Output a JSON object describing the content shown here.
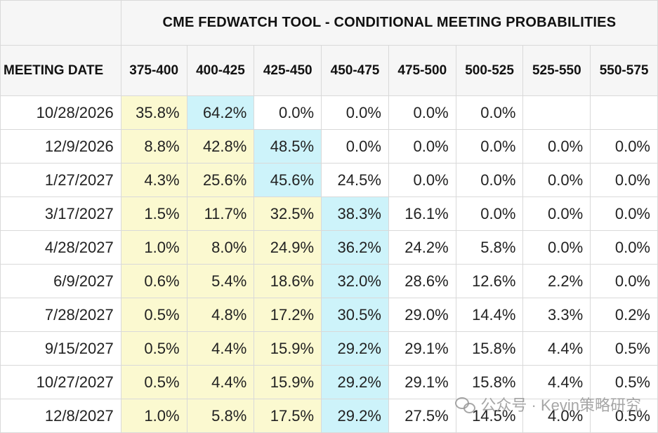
{
  "title": "CME FEDWATCH TOOL - CONDITIONAL MEETING PROBABILITIES",
  "date_header": "MEETING DATE",
  "ranges": [
    "375-400",
    "400-425",
    "425-450",
    "450-475",
    "475-500",
    "500-525",
    "525-550",
    "550-575"
  ],
  "rows": [
    {
      "date": "10/28/2026",
      "values": [
        "35.8%",
        "64.2%",
        "0.0%",
        "0.0%",
        "0.0%",
        "0.0%",
        "",
        ""
      ],
      "shade": [
        "y",
        "b",
        "",
        "",
        "",
        "",
        "",
        ""
      ]
    },
    {
      "date": "12/9/2026",
      "values": [
        "8.8%",
        "42.8%",
        "48.5%",
        "0.0%",
        "0.0%",
        "0.0%",
        "0.0%",
        "0.0%"
      ],
      "shade": [
        "y",
        "y",
        "b",
        "",
        "",
        "",
        "",
        ""
      ]
    },
    {
      "date": "1/27/2027",
      "values": [
        "4.3%",
        "25.6%",
        "45.6%",
        "24.5%",
        "0.0%",
        "0.0%",
        "0.0%",
        "0.0%"
      ],
      "shade": [
        "y",
        "y",
        "b",
        "",
        "",
        "",
        "",
        ""
      ]
    },
    {
      "date": "3/17/2027",
      "values": [
        "1.5%",
        "11.7%",
        "32.5%",
        "38.3%",
        "16.1%",
        "0.0%",
        "0.0%",
        "0.0%"
      ],
      "shade": [
        "y",
        "y",
        "y",
        "b",
        "",
        "",
        "",
        ""
      ]
    },
    {
      "date": "4/28/2027",
      "values": [
        "1.0%",
        "8.0%",
        "24.9%",
        "36.2%",
        "24.2%",
        "5.8%",
        "0.0%",
        "0.0%"
      ],
      "shade": [
        "y",
        "y",
        "y",
        "b",
        "",
        "",
        "",
        ""
      ]
    },
    {
      "date": "6/9/2027",
      "values": [
        "0.6%",
        "5.4%",
        "18.6%",
        "32.0%",
        "28.6%",
        "12.6%",
        "2.2%",
        "0.0%"
      ],
      "shade": [
        "y",
        "y",
        "y",
        "b",
        "",
        "",
        "",
        ""
      ]
    },
    {
      "date": "7/28/2027",
      "values": [
        "0.5%",
        "4.8%",
        "17.2%",
        "30.5%",
        "29.0%",
        "14.4%",
        "3.3%",
        "0.2%"
      ],
      "shade": [
        "y",
        "y",
        "y",
        "b",
        "",
        "",
        "",
        ""
      ]
    },
    {
      "date": "9/15/2027",
      "values": [
        "0.5%",
        "4.4%",
        "15.9%",
        "29.2%",
        "29.1%",
        "15.8%",
        "4.4%",
        "0.5%"
      ],
      "shade": [
        "y",
        "y",
        "y",
        "b",
        "",
        "",
        "",
        ""
      ]
    },
    {
      "date": "10/27/2027",
      "values": [
        "0.5%",
        "4.4%",
        "15.9%",
        "29.2%",
        "29.1%",
        "15.8%",
        "4.4%",
        "0.5%"
      ],
      "shade": [
        "y",
        "y",
        "y",
        "b",
        "",
        "",
        "",
        ""
      ]
    },
    {
      "date": "12/8/2027",
      "values": [
        "1.0%",
        "5.8%",
        "17.5%",
        "29.2%",
        "27.5%",
        "14.5%",
        "4.0%",
        "0.5%"
      ],
      "shade": [
        "y",
        "y",
        "y",
        "b",
        "",
        "",
        "",
        ""
      ]
    }
  ],
  "colors": {
    "below_target": "#fbf9d0",
    "target": "#cdf3fa",
    "header_bg": "#f6f6f6",
    "grid": "#d9d9d9"
  },
  "watermark": {
    "icon": "wechat-icon",
    "text": "公众号 · Kevin策略研究"
  }
}
